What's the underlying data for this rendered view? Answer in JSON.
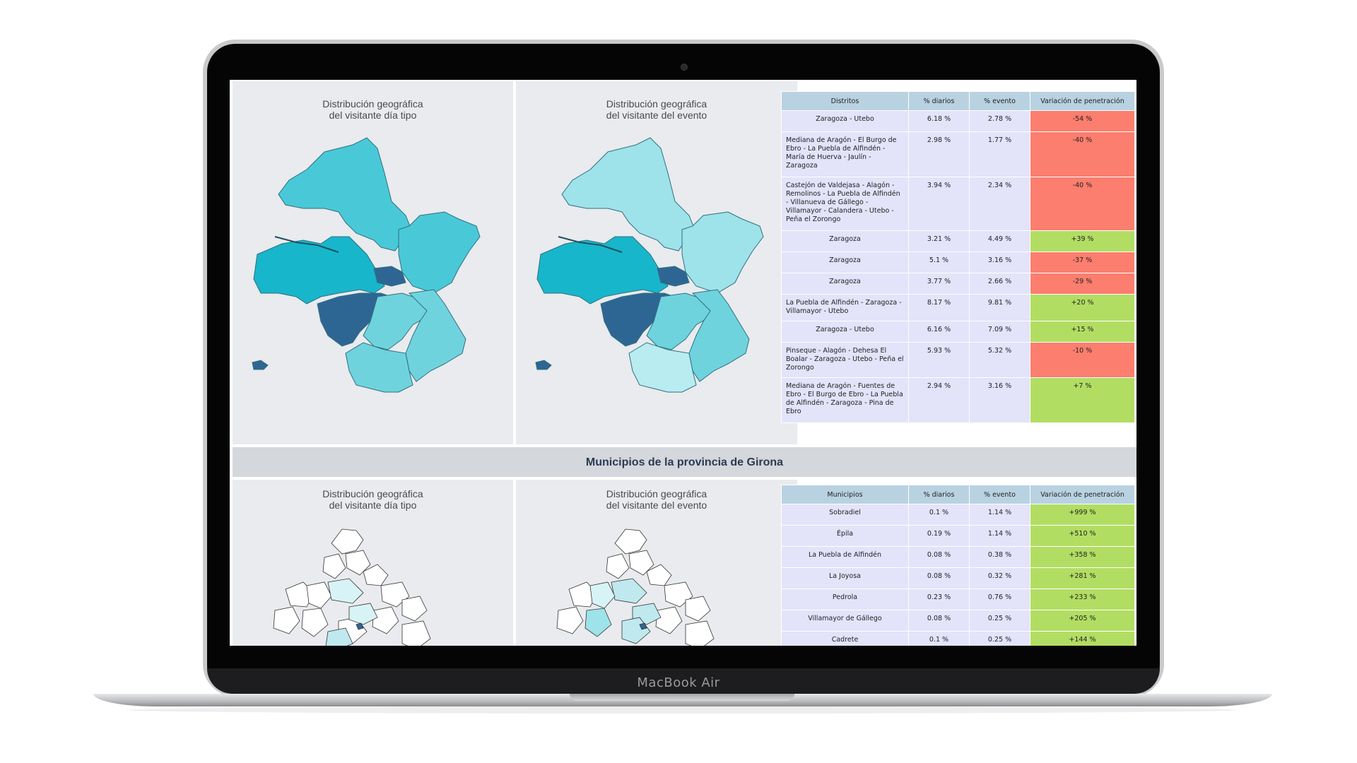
{
  "device": {
    "brand_label": "MacBook Air"
  },
  "colors": {
    "header_bg": "#b9d2e1",
    "cell_bg": "#e3e3fa",
    "negative": "#fb7e6f",
    "positive": "#b2dd63",
    "map_dark": "#2e6693",
    "map_mid": "#17b6cb",
    "map_light": "#49c9d7",
    "map_pale": "#9ee2ea"
  },
  "top_section": {
    "map_left_title": "Distribución geográfica\ndel visitante día tipo",
    "map_right_title": "Distribución geográfica\ndel visitante del evento",
    "table": {
      "headers": [
        "Distritos",
        "% diarios",
        "% evento",
        "Variación de penetración"
      ],
      "rows": [
        {
          "name": "Zaragoza - Utebo",
          "diarios": "6.18 %",
          "evento": "2.78 %",
          "variacion": "-54 %",
          "sign": "neg"
        },
        {
          "name": "Mediana de Aragón - El Burgo de Ebro - La Puebla de Alfindén - María de Huerva - Jaulín - Zaragoza",
          "diarios": "2.98 %",
          "evento": "1.77 %",
          "variacion": "-40 %",
          "sign": "neg"
        },
        {
          "name": "Castejón de Valdejasa - Alagón - Remolinos - La Puebla de Alfindén - Villanueva de Gállego - Villamayor - Calandera - Utebo - Peña el Zorongo",
          "diarios": "3.94 %",
          "evento": "2.34 %",
          "variacion": "-40 %",
          "sign": "neg"
        },
        {
          "name": "Zaragoza",
          "diarios": "3.21 %",
          "evento": "4.49 %",
          "variacion": "+39 %",
          "sign": "pos"
        },
        {
          "name": "Zaragoza",
          "diarios": "5.1 %",
          "evento": "3.16 %",
          "variacion": "-37 %",
          "sign": "neg"
        },
        {
          "name": "Zaragoza",
          "diarios": "3.77 %",
          "evento": "2.66 %",
          "variacion": "-29 %",
          "sign": "neg"
        },
        {
          "name": "La Puebla de Alfindén - Zaragoza - Villamayor - Utebo",
          "diarios": "8.17 %",
          "evento": "9.81 %",
          "variacion": "+20 %",
          "sign": "pos"
        },
        {
          "name": "Zaragoza - Utebo",
          "diarios": "6.16 %",
          "evento": "7.09 %",
          "variacion": "+15 %",
          "sign": "pos"
        },
        {
          "name": "Pinseque - Alagón - Dehesa El Boalar - Zaragoza - Utebo - Peña el Zorongo",
          "diarios": "5.93 %",
          "evento": "5.32 %",
          "variacion": "-10 %",
          "sign": "neg"
        },
        {
          "name": "Mediana de Aragón - Fuentes de Ebro - El Burgo de Ebro - La Puebla de Alfindén - Zaragoza - Pina de Ebro",
          "diarios": "2.94 %",
          "evento": "3.16 %",
          "variacion": "+7 %",
          "sign": "pos"
        }
      ]
    }
  },
  "bottom_section": {
    "title": "Municipios de la provincia de Girona",
    "map_left_title": "Distribución geográfica\ndel visitante día tipo",
    "map_right_title": "Distribución geográfica\ndel visitante del evento",
    "table": {
      "headers": [
        "Municipios",
        "% diarios",
        "% evento",
        "Variación de penetración"
      ],
      "rows": [
        {
          "name": "Sobradiel",
          "diarios": "0.1 %",
          "evento": "1.14 %",
          "variacion": "+999 %",
          "sign": "pos"
        },
        {
          "name": "Épila",
          "diarios": "0.19 %",
          "evento": "1.14 %",
          "variacion": "+510 %",
          "sign": "pos"
        },
        {
          "name": "La Puebla de Alfindén",
          "diarios": "0.08 %",
          "evento": "0.38 %",
          "variacion": "+358 %",
          "sign": "pos"
        },
        {
          "name": "La Joyosa",
          "diarios": "0.08 %",
          "evento": "0.32 %",
          "variacion": "+281 %",
          "sign": "pos"
        },
        {
          "name": "Pedrola",
          "diarios": "0.23 %",
          "evento": "0.76 %",
          "variacion": "+233 %",
          "sign": "pos"
        },
        {
          "name": "Villamayor de Gállego",
          "diarios": "0.08 %",
          "evento": "0.25 %",
          "variacion": "+205 %",
          "sign": "pos"
        },
        {
          "name": "Cadrete",
          "diarios": "0.1 %",
          "evento": "0.25 %",
          "variacion": "+144 %",
          "sign": "pos"
        }
      ]
    }
  }
}
